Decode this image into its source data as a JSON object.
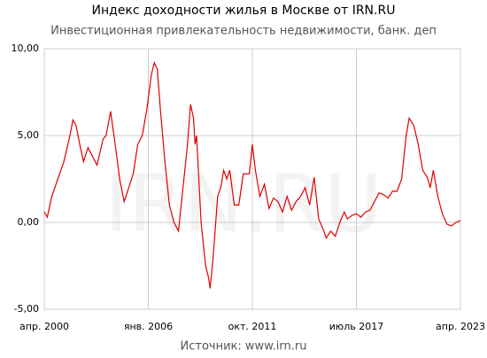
{
  "chart_data": {
    "type": "line",
    "title": "Индекс доходности жилья в Москве от IRN.RU",
    "subtitle": "Инвестиционная привлекательность недвижимости, банк. деп",
    "source": "Источник: www.irn.ru",
    "watermark": "IRN.RU",
    "x": [
      "2000-04",
      "2000-06",
      "2000-09",
      "2001-01",
      "2001-05",
      "2001-09",
      "2001-11",
      "2002-01",
      "2002-04",
      "2002-06",
      "2002-09",
      "2002-12",
      "2003-03",
      "2003-07",
      "2003-09",
      "2003-12",
      "2004-03",
      "2004-06",
      "2004-09",
      "2004-12",
      "2005-03",
      "2005-06",
      "2005-09",
      "2005-12",
      "2006-03",
      "2006-05",
      "2006-07",
      "2006-09",
      "2006-12",
      "2007-03",
      "2007-06",
      "2007-09",
      "2007-12",
      "2008-03",
      "2008-05",
      "2008-07",
      "2008-08",
      "2008-09",
      "2008-12",
      "2009-03",
      "2009-05",
      "2009-06",
      "2009-08",
      "2009-11",
      "2010-01",
      "2010-03",
      "2010-05",
      "2010-07",
      "2010-10",
      "2011-01",
      "2011-04",
      "2011-08",
      "2011-10",
      "2011-12",
      "2012-03",
      "2012-06",
      "2012-09",
      "2012-12",
      "2013-03",
      "2013-06",
      "2013-09",
      "2013-12",
      "2014-03",
      "2014-06",
      "2014-09",
      "2014-12",
      "2015-03",
      "2015-06",
      "2015-09",
      "2015-11",
      "2016-02",
      "2016-05",
      "2016-08",
      "2016-11",
      "2017-01",
      "2017-04",
      "2017-07",
      "2017-10",
      "2018-01",
      "2018-04",
      "2018-07",
      "2018-10",
      "2019-01",
      "2019-04",
      "2019-07",
      "2019-10",
      "2020-01",
      "2020-04",
      "2020-06",
      "2020-09",
      "2020-12",
      "2021-03",
      "2021-06",
      "2021-08",
      "2021-10",
      "2022-01",
      "2022-04",
      "2022-07",
      "2022-10",
      "2023-01",
      "2023-04"
    ],
    "series": [
      {
        "color": "#e00000",
        "values": [
          0.6,
          0.3,
          1.5,
          2.5,
          3.5,
          5.0,
          5.9,
          5.6,
          4.3,
          3.5,
          4.3,
          3.8,
          3.3,
          4.8,
          5.0,
          6.4,
          4.5,
          2.5,
          1.2,
          2.0,
          2.8,
          4.5,
          5.0,
          6.5,
          8.5,
          9.2,
          8.8,
          6.5,
          3.5,
          1.0,
          0.0,
          -0.5,
          2.0,
          4.5,
          6.8,
          6.0,
          4.5,
          5.0,
          0.0,
          -2.5,
          -3.2,
          -3.8,
          -2.0,
          1.5,
          2.0,
          3.0,
          2.5,
          3.0,
          1.0,
          1.0,
          2.8,
          2.8,
          4.5,
          3.0,
          1.5,
          2.2,
          0.8,
          1.4,
          1.2,
          0.6,
          1.5,
          0.7,
          1.2,
          1.5,
          2.0,
          1.0,
          2.6,
          0.2,
          -0.4,
          -0.9,
          -0.5,
          -0.8,
          0.0,
          0.6,
          0.2,
          0.4,
          0.5,
          0.3,
          0.6,
          0.7,
          1.2,
          1.7,
          1.6,
          1.4,
          1.8,
          1.8,
          2.5,
          5.0,
          6.0,
          5.6,
          4.5,
          3.0,
          2.6,
          2.0,
          3.0,
          1.5,
          0.5,
          -0.1,
          -0.2,
          0.0,
          0.1
        ]
      }
    ],
    "xlim": [
      "2000-04",
      "2023-04"
    ],
    "xticks": [
      {
        "value": "2000-04",
        "label": "апр. 2000"
      },
      {
        "value": "2006-01",
        "label": "янв. 2006"
      },
      {
        "value": "2011-10",
        "label": "окт. 2011"
      },
      {
        "value": "2017-07",
        "label": "июль 2017"
      },
      {
        "value": "2023-04",
        "label": "апр. 2023"
      }
    ],
    "ylim": [
      -5,
      10
    ],
    "yticks": [
      {
        "value": -5,
        "label": "-5,00"
      },
      {
        "value": 0,
        "label": "0,00"
      },
      {
        "value": 5,
        "label": "5,00"
      },
      {
        "value": 10,
        "label": "10,00"
      }
    ],
    "grid": true
  }
}
